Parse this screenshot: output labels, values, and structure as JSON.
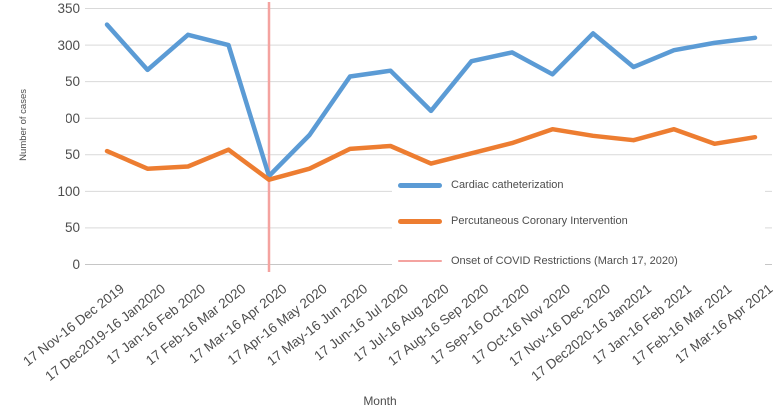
{
  "colors": {
    "background": "#FFFFFF",
    "gridline": "#D9D9D9",
    "axis_line": "#C6C6C6",
    "axis_text": "#4D4D4D",
    "legend_text": "#4D4D4D"
  },
  "chart_data": {
    "type": "line",
    "title": "",
    "xlabel": "Month",
    "ylabel": "Number of cases",
    "ylim": [
      0,
      350
    ],
    "yticks": [
      350,
      300,
      250,
      200,
      150,
      100,
      50,
      0
    ],
    "grid": true,
    "legend_position": "inside-bottom-right",
    "categories": [
      "17 Nov-16 Dec 2019",
      "17 Dec2019-16 Jan2020",
      "17 Jan-16 Feb 2020",
      "17 Feb-16 Mar 2020",
      "17 Mar-16 Apr 2020",
      "17 Apr-16 May 2020",
      "17 May-16 Jun 2020",
      "17 Jun-16 Jul 2020",
      "17 Jul-16 Aug 2020",
      "17 Aug-16 Sep 2020",
      "17 Sep-16 Oct 2020",
      "17 Oct-16 Nov 2020",
      "17 Nov-16 Dec 2020",
      "17 Dec2020-16 Jan2021",
      "17 Jan-16 Feb 2021",
      "17 Feb-16 Mar 2021",
      "17 Mar-16 Apr 2021"
    ],
    "series": [
      {
        "name": "Cardiac catheterization",
        "color": "#5B9BD5",
        "values": [
          328,
          266,
          314,
          300,
          121,
          177,
          257,
          265,
          210,
          278,
          290,
          260,
          316,
          270,
          293,
          303,
          310
        ]
      },
      {
        "name": "Percutaneous Coronary Intervention",
        "color": "#ED7D31",
        "values": [
          155,
          131,
          134,
          157,
          116,
          131,
          158,
          162,
          138,
          152,
          166,
          185,
          176,
          170,
          185,
          165,
          174
        ]
      }
    ],
    "annotation": {
      "label": "Onset of COVID Restrictions (March 17, 2020)",
      "color": "#F4A3A0",
      "x_category": "17 Mar-16 Apr 2020",
      "x_category_index": 4
    }
  }
}
